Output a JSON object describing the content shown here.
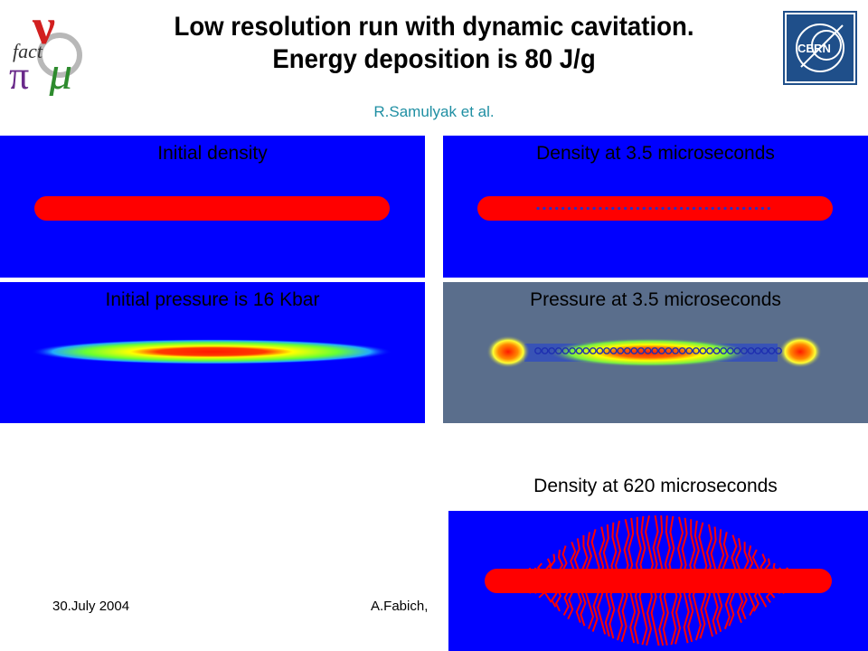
{
  "header": {
    "title_line1": "Low resolution run with dynamic cavitation.",
    "title_line2": "Energy deposition is 80 J/g",
    "author": "R.Samulyak et al."
  },
  "logos": {
    "left": "nufact-logo",
    "right": "CERN"
  },
  "panels": {
    "initial_density": {
      "label": "Initial density"
    },
    "density_3_5": {
      "label": "Density at 3.5 microseconds"
    },
    "initial_pressure": {
      "label": "Initial pressure is 16 Kbar"
    },
    "pressure_3_5": {
      "label": "Pressure at 3.5 microseconds"
    },
    "density_620": {
      "label": "Density at 620 microseconds"
    }
  },
  "footer": {
    "date": "30.July 2004",
    "author": "A.Fabich,"
  },
  "colors": {
    "field_blue": "#0000ff",
    "jet_red": "#ff0000",
    "pressure_bg": "#5a6e8c",
    "author_teal": "#1f8fa3"
  }
}
